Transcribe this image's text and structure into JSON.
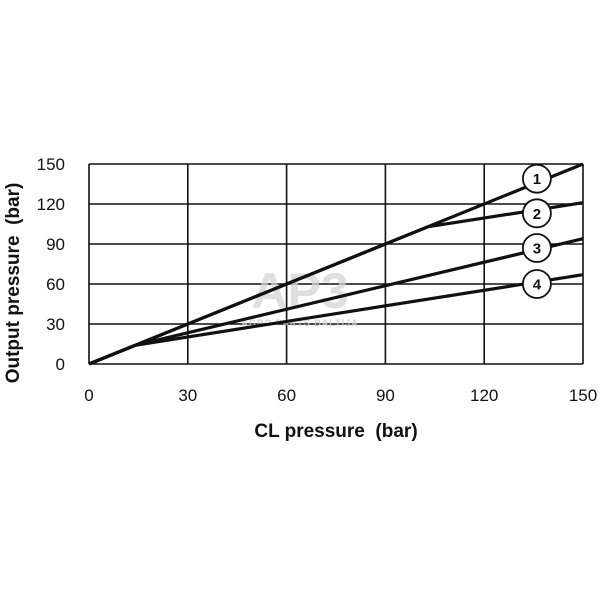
{
  "chart_data": {
    "type": "line",
    "xlabel": "CL pressure  (bar)",
    "ylabel": "Output pressure  (bar)",
    "xlim": [
      0,
      150
    ],
    "ylim": [
      0,
      150
    ],
    "xticks": [
      "0",
      "30",
      "60",
      "90",
      "120",
      "150"
    ],
    "yticks": [
      "0",
      "30",
      "60",
      "90",
      "120",
      "150"
    ],
    "grid": true,
    "series": [
      {
        "name": "1",
        "x": [
          0,
          150
        ],
        "y": [
          0,
          150
        ]
      },
      {
        "name": "2",
        "x": [
          0,
          103,
          150
        ],
        "y": [
          0,
          103,
          121
        ]
      },
      {
        "name": "3",
        "x": [
          0,
          14,
          150
        ],
        "y": [
          0,
          14,
          94
        ]
      },
      {
        "name": "4",
        "x": [
          0,
          14,
          150
        ],
        "y": [
          0,
          14,
          67
        ]
      }
    ],
    "markers": [
      {
        "label": "1",
        "x": 136,
        "y": 139
      },
      {
        "label": "2",
        "x": 136,
        "y": 113
      },
      {
        "label": "3",
        "x": 136,
        "y": 87
      },
      {
        "label": "4",
        "x": 136,
        "y": 60
      }
    ]
  },
  "watermark": {
    "logo": "AP3",
    "text": "AGRO PARTS BALTIJA",
    "color": "#cccccc"
  }
}
